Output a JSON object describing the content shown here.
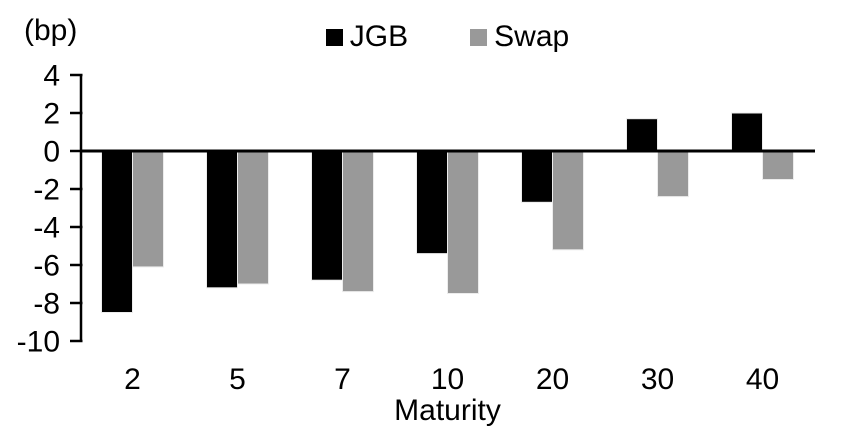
{
  "chart_data": {
    "type": "bar",
    "title": "",
    "unit_label": "(bp)",
    "xlabel": "Maturity",
    "categories": [
      "2",
      "5",
      "7",
      "10",
      "20",
      "30",
      "40"
    ],
    "series": [
      {
        "name": "JGB",
        "color": "#000000",
        "values": [
          -8.5,
          -7.2,
          -6.8,
          -5.4,
          -2.7,
          1.7,
          2.0
        ]
      },
      {
        "name": "Swap",
        "color": "#999999",
        "values": [
          -6.1,
          -7.0,
          -7.4,
          -7.5,
          -5.2,
          -2.4,
          -1.5
        ]
      }
    ],
    "ylim": [
      -10,
      4
    ],
    "ytick_step": 2,
    "ytick_labels": [
      "4",
      "2",
      "0",
      "-2",
      "-4",
      "-6",
      "-8",
      "-10"
    ],
    "legend_position": "top",
    "grid": false,
    "axis_color": "#000000",
    "background": "#ffffff"
  }
}
